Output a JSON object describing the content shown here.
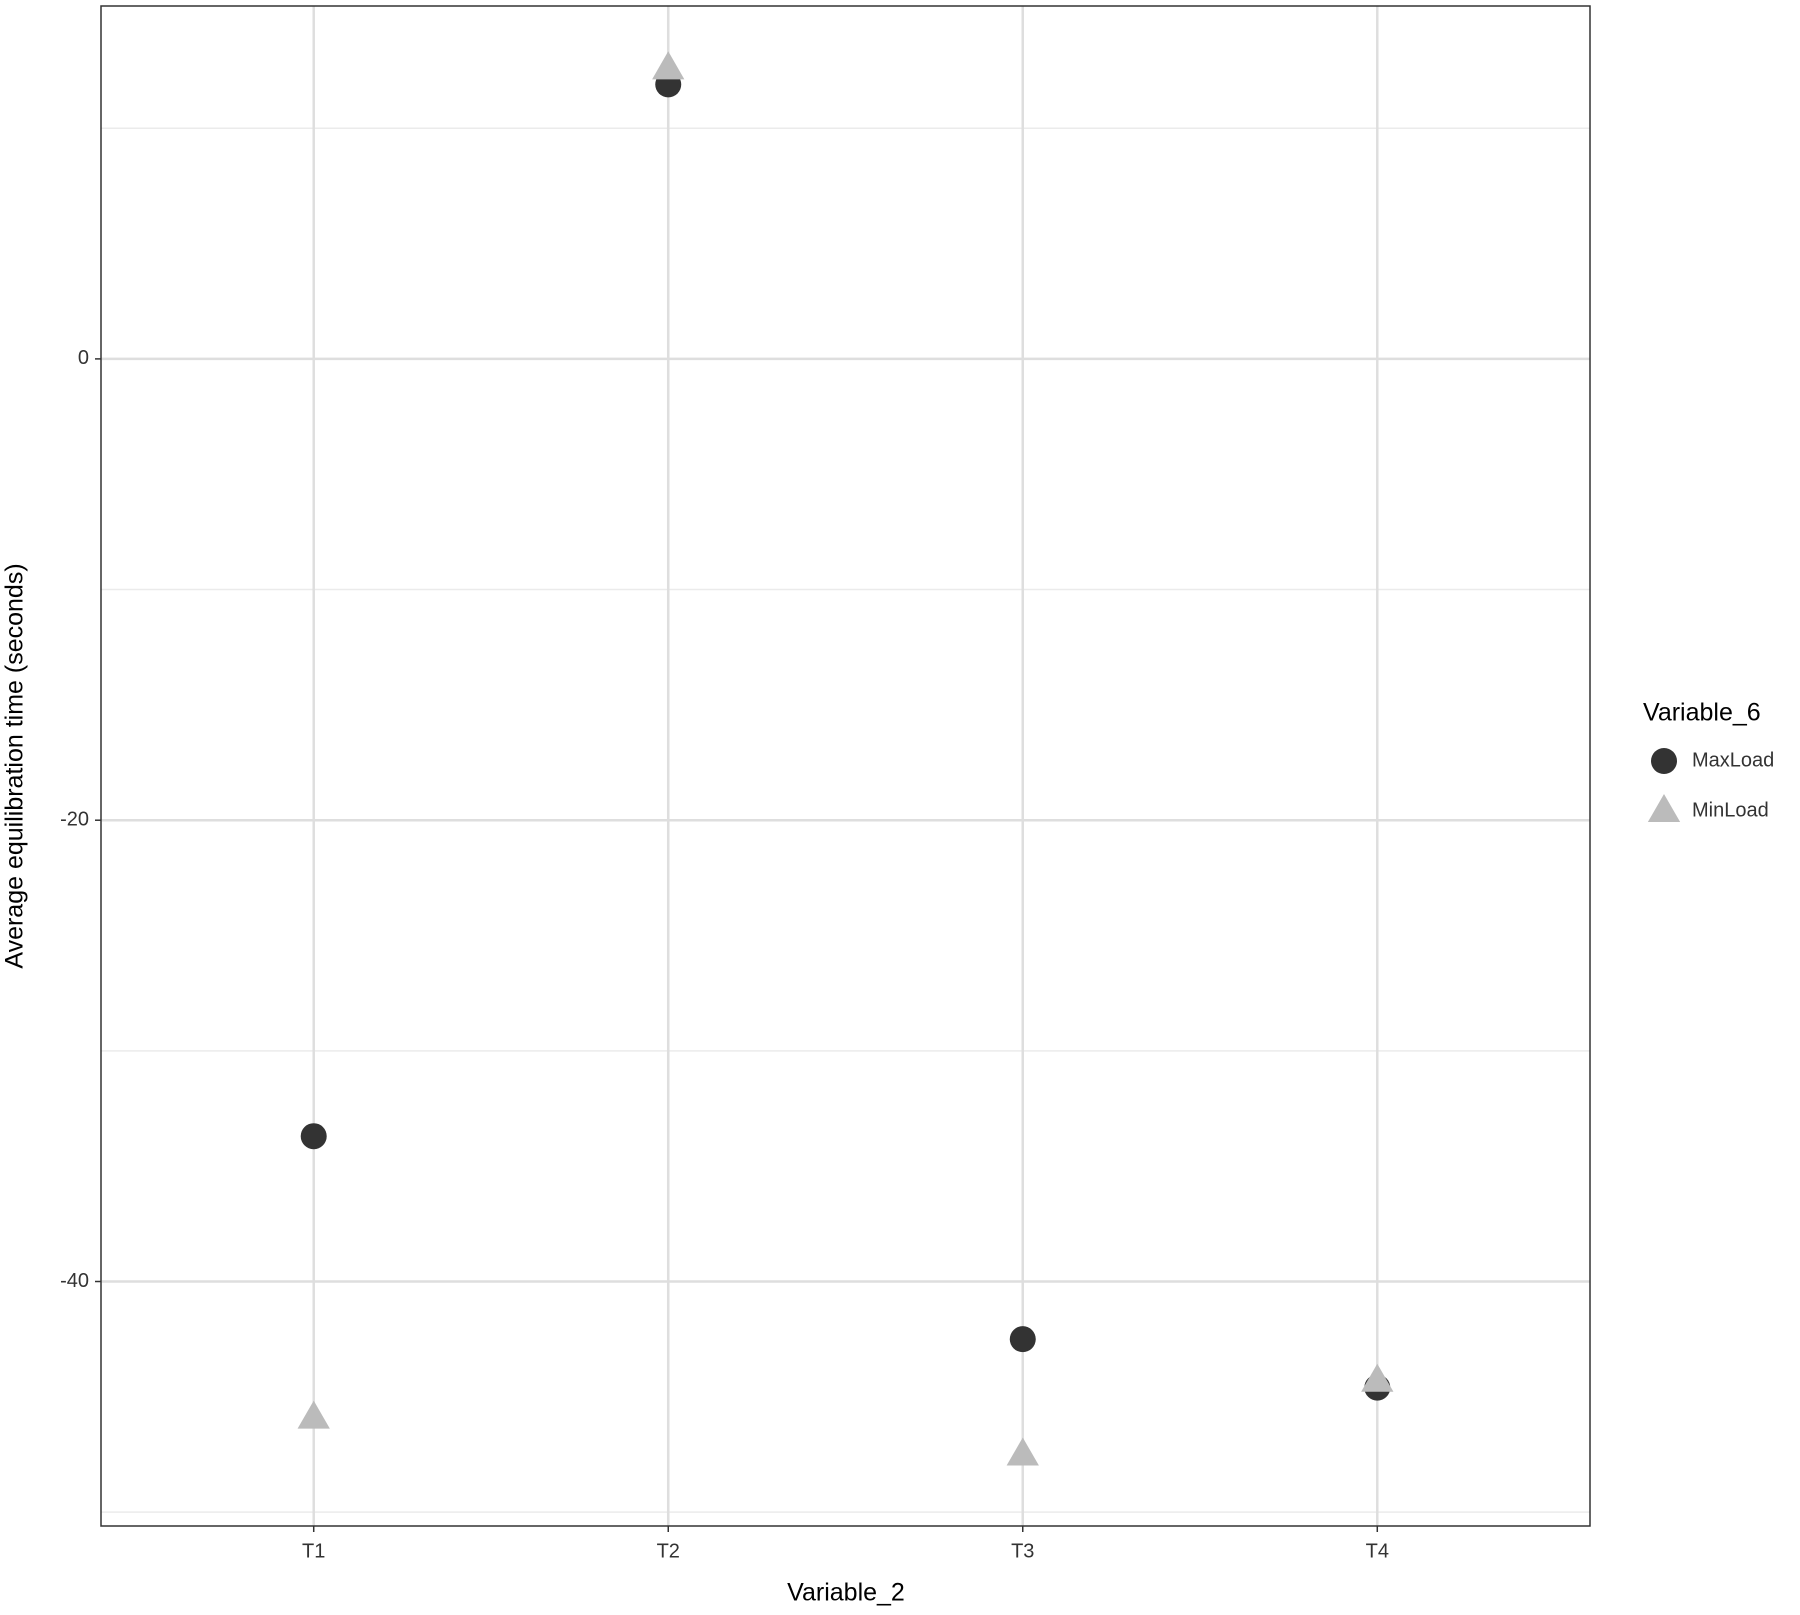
{
  "chart_data": {
    "type": "scatter",
    "x_label": "Variable_2",
    "y_label": "Average equilibration  time (seconds)",
    "categories": [
      "T1",
      "T2",
      "T3",
      "T4"
    ],
    "legend_title": "Variable_6",
    "series": [
      {
        "name": "MaxLoad",
        "color": "#333333",
        "marker": "circle",
        "values": [
          -33.7,
          11.9,
          -42.5,
          -44.6
        ]
      },
      {
        "name": "MinLoad",
        "color": "#bbbbbb",
        "marker": "triangle",
        "values": [
          -45.9,
          12.6,
          -47.5,
          -44.3
        ]
      }
    ],
    "ylim": [
      -50.6,
      15.3
    ],
    "yticks": [
      -40,
      -20,
      0
    ],
    "minor_yticks": [
      -50,
      -30,
      -10,
      10
    ],
    "grid": true,
    "legend": "right"
  }
}
